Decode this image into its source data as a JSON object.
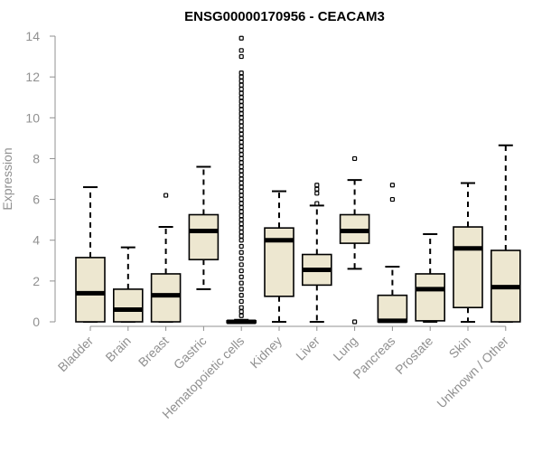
{
  "chart_data": {
    "type": "boxplot",
    "title": "ENSG00000170956 - CEACAM3",
    "ylabel": "Expression",
    "xlabel": "",
    "ylim": [
      0,
      14
    ],
    "yticks": [
      0,
      2,
      4,
      6,
      8,
      10,
      12,
      14
    ],
    "colors": {
      "box_fill": "#ede7d0",
      "box_stroke": "#000000",
      "axis": "#909090",
      "text": "#909090"
    },
    "categories": [
      "Bladder",
      "Brain",
      "Breast",
      "Gastric",
      "Hematopoietic cells",
      "Kidney",
      "Liver",
      "Lung",
      "Pancreas",
      "Prostate",
      "Skin",
      "Unknown / Other"
    ],
    "boxes": [
      {
        "name": "Bladder",
        "whisker_low": 0,
        "q1": 0,
        "median": 1.4,
        "q3": 3.15,
        "whisker_high": 6.6,
        "outliers": []
      },
      {
        "name": "Brain",
        "whisker_low": 0,
        "q1": 0,
        "median": 0.6,
        "q3": 1.6,
        "whisker_high": 3.65,
        "outliers": []
      },
      {
        "name": "Breast",
        "whisker_low": 0,
        "q1": 0,
        "median": 1.3,
        "q3": 2.35,
        "whisker_high": 4.65,
        "outliers": [
          6.2
        ]
      },
      {
        "name": "Gastric",
        "whisker_low": 1.6,
        "q1": 3.05,
        "median": 4.45,
        "q3": 5.25,
        "whisker_high": 7.6,
        "outliers": []
      },
      {
        "name": "Hematopoietic cells",
        "whisker_low": 0,
        "q1": 0,
        "median": 0,
        "q3": 0.05,
        "whisker_high": 0.1,
        "outliers": [
          13.9,
          13.3,
          13.0,
          12.2,
          12.0,
          11.8,
          11.6,
          11.4,
          11.2,
          11.0,
          10.8,
          10.6,
          10.4,
          10.2,
          10.0,
          9.8,
          9.6,
          9.4,
          9.2,
          9.0,
          8.8,
          8.6,
          8.4,
          8.2,
          8.0,
          7.8,
          7.6,
          7.4,
          7.2,
          7.0,
          6.8,
          6.6,
          6.4,
          6.2,
          6.0,
          5.8,
          5.6,
          5.4,
          5.2,
          5.0,
          4.8,
          4.6,
          4.4,
          4.2,
          4.0,
          3.7,
          3.4,
          3.1,
          2.8,
          2.5,
          2.2,
          1.9,
          1.6,
          1.3,
          1.0,
          0.7,
          0.5,
          0.3
        ]
      },
      {
        "name": "Kidney",
        "whisker_low": 0,
        "q1": 1.25,
        "median": 4.0,
        "q3": 4.6,
        "whisker_high": 6.4,
        "outliers": []
      },
      {
        "name": "Liver",
        "whisker_low": 0,
        "q1": 1.8,
        "median": 2.55,
        "q3": 3.3,
        "whisker_high": 5.7,
        "outliers": [
          6.7,
          6.5,
          6.3,
          5.8
        ]
      },
      {
        "name": "Lung",
        "whisker_low": 2.6,
        "q1": 3.85,
        "median": 4.45,
        "q3": 5.25,
        "whisker_high": 6.95,
        "outliers": [
          8.0,
          0
        ]
      },
      {
        "name": "Pancreas",
        "whisker_low": 0,
        "q1": 0,
        "median": 0.05,
        "q3": 1.3,
        "whisker_high": 2.7,
        "outliers": [
          6.7,
          6.0
        ]
      },
      {
        "name": "Prostate",
        "whisker_low": 0,
        "q1": 0.05,
        "median": 1.6,
        "q3": 2.35,
        "whisker_high": 4.3,
        "outliers": []
      },
      {
        "name": "Skin",
        "whisker_low": 0,
        "q1": 0.7,
        "median": 3.6,
        "q3": 4.65,
        "whisker_high": 6.8,
        "outliers": []
      },
      {
        "name": "Unknown / Other",
        "whisker_low": 0,
        "q1": 0,
        "median": 1.7,
        "q3": 3.5,
        "whisker_high": 8.65,
        "outliers": []
      }
    ]
  }
}
